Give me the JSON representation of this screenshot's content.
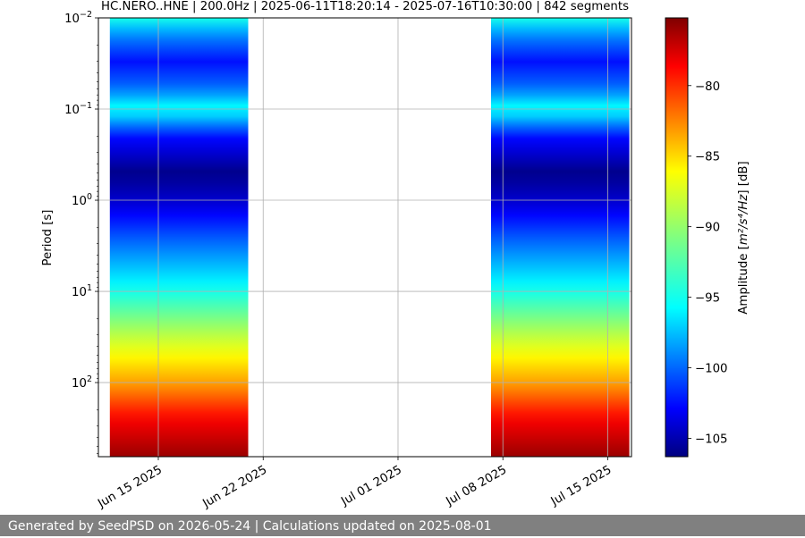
{
  "chart_data": {
    "type": "heatmap",
    "title": "HC.NERO..HNE | 200.0Hz | 2025-06-11T18:20:14 - 2025-07-16T10:30:00 | 842 segments",
    "ylabel": "Period [s]",
    "xlabel": "",
    "y_scale": "log",
    "y_inverted": true,
    "ylim": [
      0.01,
      650
    ],
    "xlim": [
      "2025-06-11T00:00",
      "2025-07-16T14:00"
    ],
    "x_ticks": [
      {
        "date": "2025-06-15",
        "label": "Jun 15 2025"
      },
      {
        "date": "2025-06-22",
        "label": "Jun 22 2025"
      },
      {
        "date": "2025-07-01",
        "label": "Jul 01 2025"
      },
      {
        "date": "2025-07-08",
        "label": "Jul 08 2025"
      },
      {
        "date": "2025-07-15",
        "label": "Jul 15 2025"
      }
    ],
    "y_ticks": [
      {
        "value": 0.01,
        "base": "10",
        "exp": "−2"
      },
      {
        "value": 0.1,
        "base": "10",
        "exp": "−1"
      },
      {
        "value": 1,
        "base": "10",
        "exp": "0"
      },
      {
        "value": 10,
        "base": "10",
        "exp": "1"
      },
      {
        "value": 100,
        "base": "10",
        "exp": "2"
      }
    ],
    "grid": true,
    "data_segments": [
      {
        "start": "2025-06-11T18:20:14",
        "end": "2025-06-21T00:00"
      },
      {
        "start": "2025-07-07T05:00",
        "end": "2025-07-16T10:30:00"
      }
    ],
    "amplitude_profile": [
      {
        "period": 0.01,
        "db": -94
      },
      {
        "period": 0.015,
        "db": -98
      },
      {
        "period": 0.03,
        "db": -102
      },
      {
        "period": 0.06,
        "db": -99
      },
      {
        "period": 0.1,
        "db": -94
      },
      {
        "period": 0.2,
        "db": -102
      },
      {
        "period": 0.5,
        "db": -106
      },
      {
        "period": 1,
        "db": -104
      },
      {
        "period": 3,
        "db": -99
      },
      {
        "period": 10,
        "db": -94
      },
      {
        "period": 30,
        "db": -89
      },
      {
        "period": 100,
        "db": -84
      },
      {
        "period": 250,
        "db": -79
      },
      {
        "period": 650,
        "db": -76
      }
    ],
    "colorbar": {
      "label_prefix": "Amplitude [",
      "label_units": "m²/s⁴/Hz",
      "label_suffix": "] [dB]",
      "colormap": "jet",
      "range": [
        -106.3,
        -75.2
      ],
      "ticks": [
        -80,
        -85,
        -90,
        -95,
        -100,
        -105
      ],
      "tick_labels": [
        "−80",
        "−85",
        "−90",
        "−95",
        "−100",
        "−105"
      ]
    }
  },
  "footer": {
    "text": "Generated by SeedPSD on 2026-05-24 | Calculations updated on 2025-08-01"
  }
}
